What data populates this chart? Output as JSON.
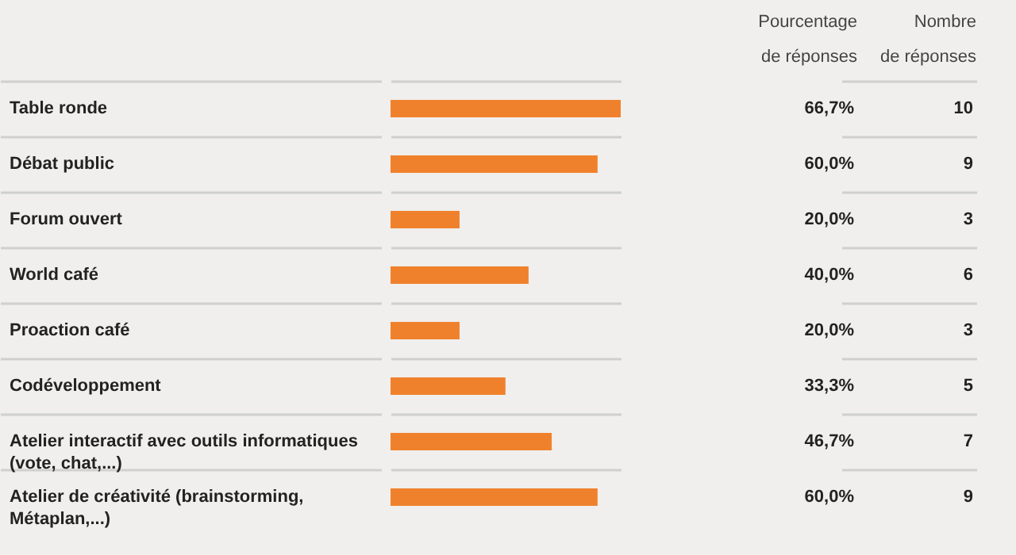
{
  "chart_data": {
    "type": "bar",
    "orientation": "horizontal",
    "grid": "y",
    "categories": [
      "Table ronde",
      "Débat public",
      "Forum ouvert",
      "World café",
      "Proaction café",
      "Codéveloppement",
      "Atelier interactif avec outils informatiques\n(vote, chat,...)",
      "Atelier de créativité (brainstorming,\nMétaplan,...)"
    ],
    "series": [
      {
        "color": "#f0812c",
        "values": [
          66.7,
          60.0,
          20.0,
          40.0,
          20.0,
          33.3,
          46.7,
          60.0
        ],
        "value_labels": [
          "66,7%",
          "60,0%",
          "20,0%",
          "40,0%",
          "20,0%",
          "33,3%",
          "46,7%",
          "60,0%"
        ]
      }
    ],
    "annotations": [
      "Pourcentage\nde réponses",
      "Nombre\nde réponses",
      "10",
      "9",
      "3",
      "6",
      "3",
      "5",
      "7",
      "9"
    ]
  }
}
